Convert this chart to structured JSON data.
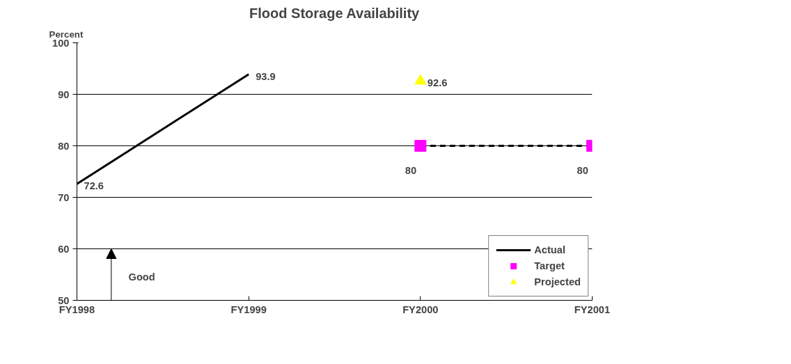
{
  "chart_data": {
    "type": "line",
    "title": "Flood Storage Availability",
    "ylabel": "Percent",
    "categories": [
      "FY1998",
      "FY1999",
      "FY2000",
      "FY2001"
    ],
    "series": [
      {
        "name": "Actual",
        "color": "#000000",
        "values": [
          72.6,
          93.9,
          null,
          null
        ],
        "line_style": "solid",
        "marker": "none"
      },
      {
        "name": "Target",
        "color": "#ff00ff",
        "values": [
          null,
          null,
          80,
          80
        ],
        "line_style": "dashed",
        "marker": "square"
      },
      {
        "name": "Projected",
        "color": "#ffff00",
        "values": [
          null,
          null,
          92.6,
          null
        ],
        "line_style": "solid",
        "marker": "triangle"
      }
    ],
    "ylim": [
      50,
      100
    ],
    "yticks": [
      50,
      60,
      70,
      80,
      90,
      100
    ],
    "grid": "y",
    "legend": "bottom right",
    "data_labels": true,
    "annotations": [
      "Good"
    ]
  }
}
